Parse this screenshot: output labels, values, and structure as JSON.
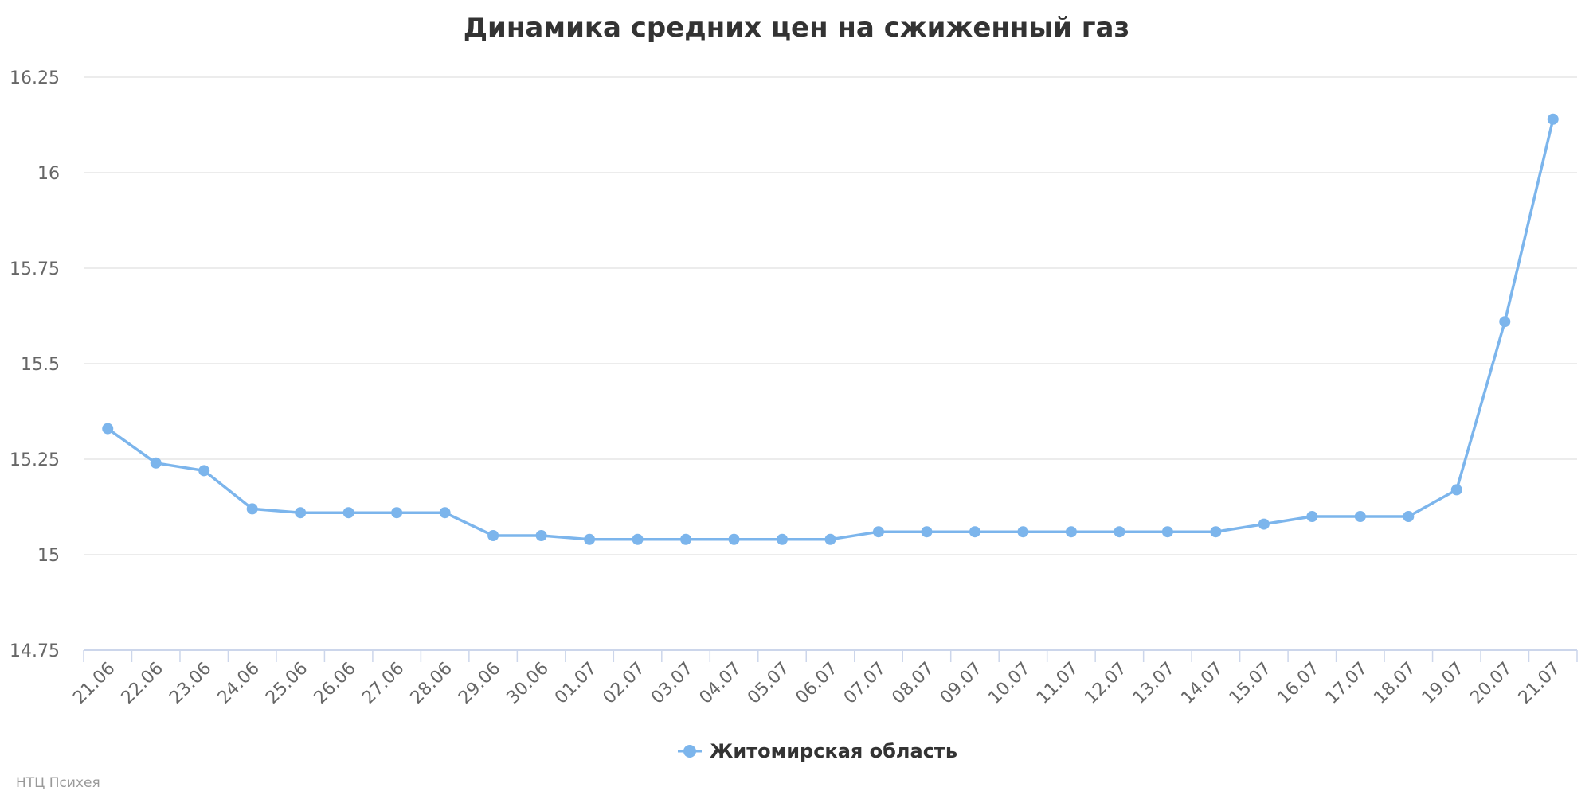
{
  "chart_data": {
    "type": "line",
    "title": "Динамика средних цен на сжиженный газ",
    "xlabel": "",
    "ylabel": "",
    "categories": [
      "21.06",
      "22.06",
      "23.06",
      "24.06",
      "25.06",
      "26.06",
      "27.06",
      "28.06",
      "29.06",
      "30.06",
      "01.07",
      "02.07",
      "03.07",
      "04.07",
      "05.07",
      "06.07",
      "07.07",
      "08.07",
      "09.07",
      "10.07",
      "11.07",
      "12.07",
      "13.07",
      "14.07",
      "15.07",
      "16.07",
      "17.07",
      "18.07",
      "19.07",
      "20.07",
      "21.07"
    ],
    "series": [
      {
        "name": "Житомирская область",
        "color": "#7cb5ec",
        "values": [
          15.33,
          15.24,
          15.22,
          15.12,
          15.11,
          15.11,
          15.11,
          15.11,
          15.05,
          15.05,
          15.04,
          15.04,
          15.04,
          15.04,
          15.04,
          15.04,
          15.06,
          15.06,
          15.06,
          15.06,
          15.06,
          15.06,
          15.06,
          15.06,
          15.08,
          15.1,
          15.1,
          15.1,
          15.17,
          15.61,
          16.14
        ]
      }
    ],
    "ylim": [
      14.75,
      16.25
    ],
    "yticks": [
      14.75,
      15,
      15.25,
      15.5,
      15.75,
      16,
      16.25
    ],
    "ytick_labels": [
      "14.75",
      "15",
      "15.25",
      "15.5",
      "15.75",
      "16",
      "16.25"
    ],
    "grid": true,
    "legend_position": "bottom-center"
  },
  "credit": "НТЦ Психея"
}
